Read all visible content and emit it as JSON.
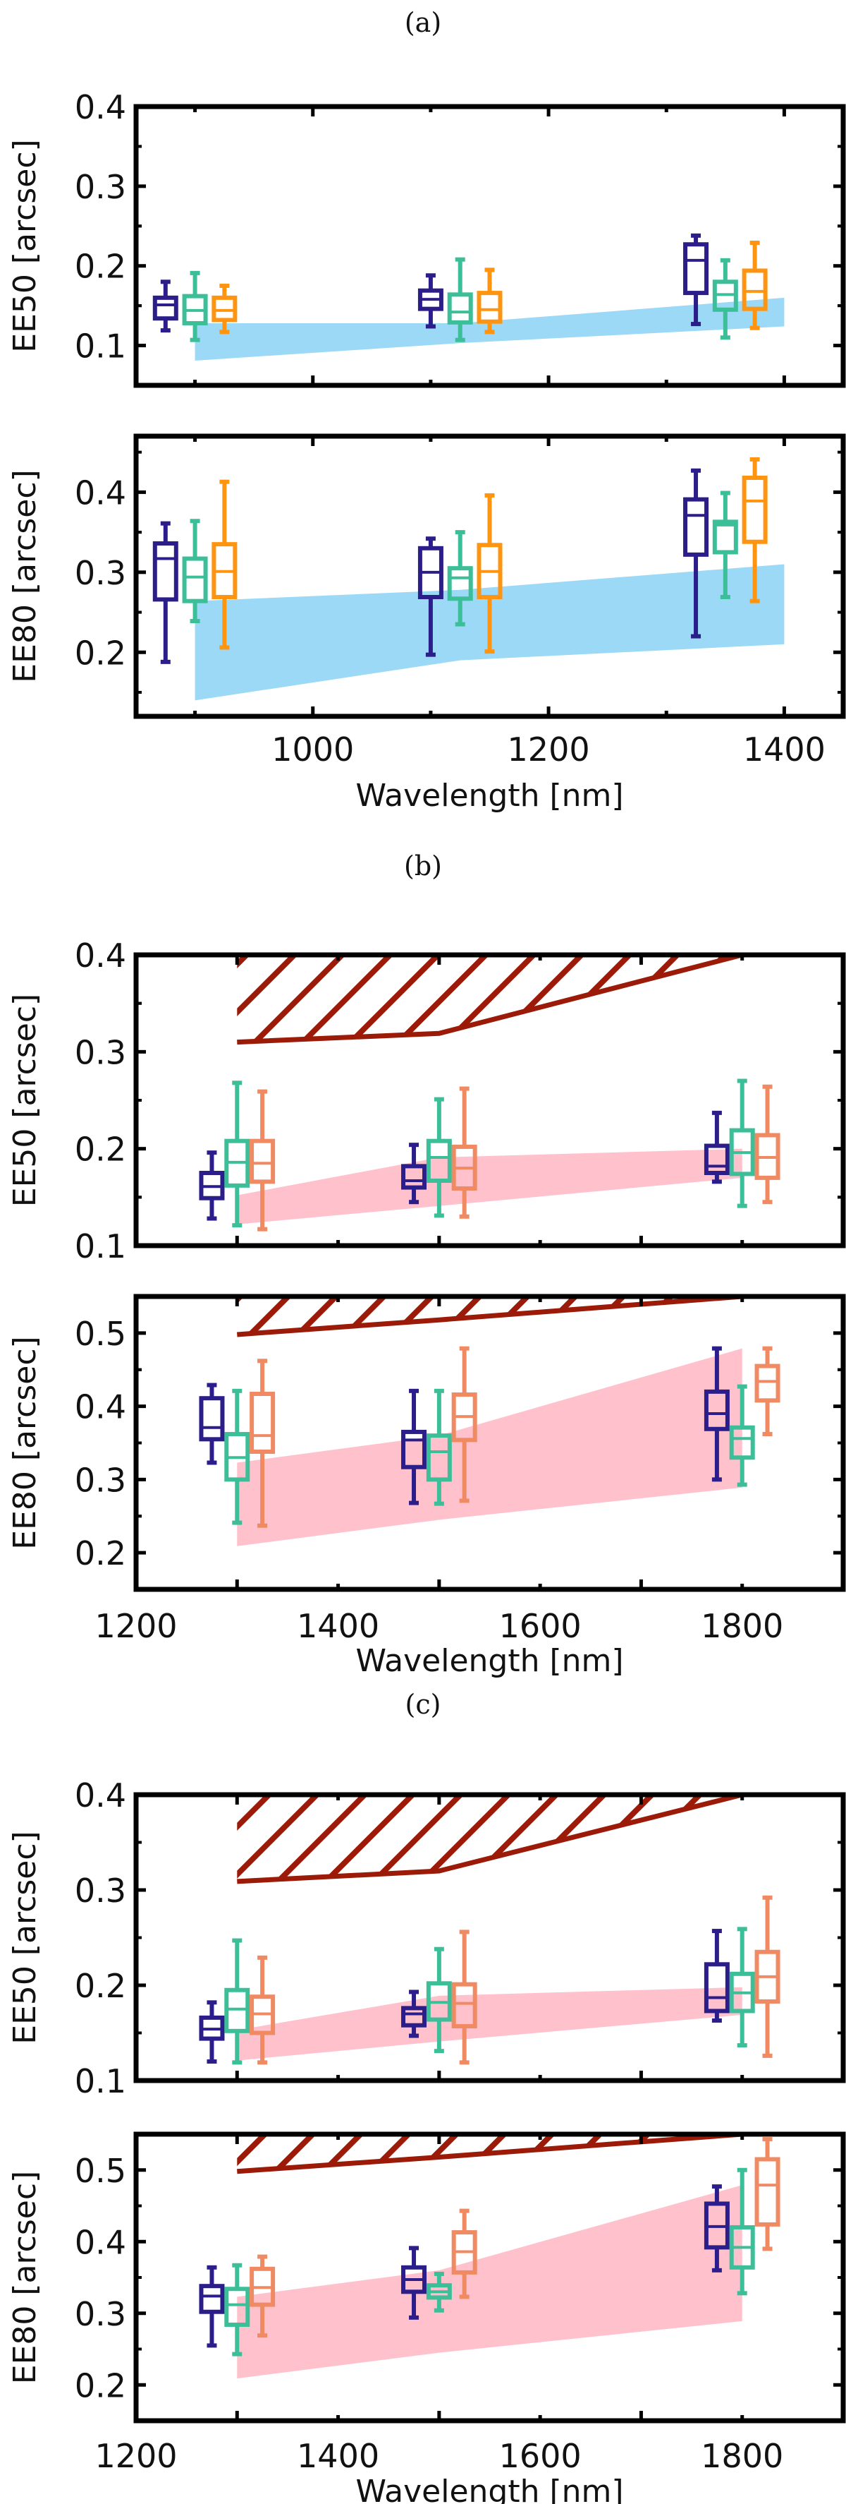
{
  "colors": {
    "purple": "#2b1d8a",
    "green": "#3cbf99",
    "orange": "#ff9410",
    "salmon": "#f08a63",
    "blue_band": "#9bd9f7",
    "pink_band": "#ffc1cc",
    "hatch": "#9b1a08",
    "axis": "#000000"
  },
  "chart_data": [
    {
      "type": "box",
      "panel": "(a)",
      "ylabel": "EE50 [arcsec]",
      "xlabel": "",
      "xlim": [
        850,
        1450
      ],
      "ylim": [
        0.05,
        0.4
      ],
      "yticks": [
        "0.1",
        "0.2",
        "0.3",
        "0.4"
      ],
      "xticks": [],
      "band": {
        "color": "#9bd9f7",
        "x": [
          900,
          1125,
          1400
        ],
        "upper": [
          0.128,
          0.128,
          0.16
        ],
        "lower": [
          0.081,
          0.103,
          0.124
        ]
      },
      "series": [
        {
          "color": "#2b1d8a",
          "boxes": [
            {
              "x": 875,
              "low": 0.119,
              "q1": 0.134,
              "median": 0.151,
              "q3": 0.16,
              "high": 0.18
            },
            {
              "x": 1100,
              "low": 0.124,
              "q1": 0.146,
              "median": 0.158,
              "q3": 0.169,
              "high": 0.188
            },
            {
              "x": 1325,
              "low": 0.127,
              "q1": 0.166,
              "median": 0.207,
              "q3": 0.227,
              "high": 0.238
            }
          ]
        },
        {
          "color": "#3cbf99",
          "boxes": [
            {
              "x": 900,
              "low": 0.107,
              "q1": 0.128,
              "median": 0.144,
              "q3": 0.162,
              "high": 0.191
            },
            {
              "x": 1125,
              "low": 0.107,
              "q1": 0.129,
              "median": 0.142,
              "q3": 0.164,
              "high": 0.208
            },
            {
              "x": 1350,
              "low": 0.11,
              "q1": 0.145,
              "median": 0.164,
              "q3": 0.18,
              "high": 0.207
            }
          ]
        },
        {
          "color": "#ff9410",
          "boxes": [
            {
              "x": 925,
              "low": 0.117,
              "q1": 0.132,
              "median": 0.144,
              "q3": 0.16,
              "high": 0.175
            },
            {
              "x": 1150,
              "low": 0.117,
              "q1": 0.13,
              "median": 0.145,
              "q3": 0.166,
              "high": 0.195
            },
            {
              "x": 1375,
              "low": 0.122,
              "q1": 0.146,
              "median": 0.168,
              "q3": 0.194,
              "high": 0.229
            }
          ]
        }
      ]
    },
    {
      "type": "box",
      "panel": "",
      "ylabel": "EE80 [arcsec]",
      "xlabel": "Wavelength [nm]",
      "xlim": [
        850,
        1450
      ],
      "ylim": [
        0.12,
        0.47
      ],
      "yticks": [
        "0.2",
        "0.3",
        "0.4"
      ],
      "xticks": [
        "1000",
        "1200",
        "1400"
      ],
      "band": {
        "color": "#9bd9f7",
        "x": [
          900,
          1125,
          1400
        ],
        "upper": [
          0.264,
          0.278,
          0.31
        ],
        "lower": [
          0.14,
          0.19,
          0.21
        ]
      },
      "series": [
        {
          "color": "#2b1d8a",
          "boxes": [
            {
              "x": 875,
              "low": 0.188,
              "q1": 0.266,
              "median": 0.317,
              "q3": 0.336,
              "high": 0.361
            },
            {
              "x": 1100,
              "low": 0.197,
              "q1": 0.269,
              "median": 0.3,
              "q3": 0.33,
              "high": 0.342
            },
            {
              "x": 1325,
              "low": 0.22,
              "q1": 0.322,
              "median": 0.371,
              "q3": 0.391,
              "high": 0.427
            }
          ]
        },
        {
          "color": "#3cbf99",
          "boxes": [
            {
              "x": 900,
              "low": 0.239,
              "q1": 0.264,
              "median": 0.294,
              "q3": 0.317,
              "high": 0.364
            },
            {
              "x": 1125,
              "low": 0.235,
              "q1": 0.267,
              "median": 0.293,
              "q3": 0.305,
              "high": 0.35
            },
            {
              "x": 1350,
              "low": 0.269,
              "q1": 0.325,
              "median": 0.359,
              "q3": 0.363,
              "high": 0.399
            }
          ]
        },
        {
          "color": "#ff9410",
          "boxes": [
            {
              "x": 925,
              "low": 0.206,
              "q1": 0.269,
              "median": 0.301,
              "q3": 0.335,
              "high": 0.413
            },
            {
              "x": 1150,
              "low": 0.201,
              "q1": 0.269,
              "median": 0.301,
              "q3": 0.334,
              "high": 0.396
            },
            {
              "x": 1375,
              "low": 0.264,
              "q1": 0.338,
              "median": 0.389,
              "q3": 0.418,
              "high": 0.441
            }
          ]
        }
      ]
    },
    {
      "type": "box",
      "panel": "(b)",
      "ylabel": "EE50 [arcsec]",
      "xlabel": "",
      "xlim": [
        1200,
        1900
      ],
      "ylim": [
        0.1,
        0.4
      ],
      "yticks": [
        "0.1",
        "0.2",
        "0.3",
        "0.4"
      ],
      "xticks": [],
      "band": {
        "color": "#ffc1cc",
        "x": [
          1300,
          1500,
          1800
        ],
        "upper": [
          0.152,
          0.191,
          0.2
        ],
        "lower": [
          0.122,
          0.141,
          0.17
        ]
      },
      "hatch": {
        "color": "#9b1a08",
        "x": [
          1300,
          1500,
          1800
        ],
        "lower": [
          0.31,
          0.319,
          0.4
        ]
      },
      "series": [
        {
          "color": "#2b1d8a",
          "boxes": [
            {
              "x": 1275,
              "low": 0.128,
              "q1": 0.149,
              "median": 0.161,
              "q3": 0.175,
              "high": 0.196
            },
            {
              "x": 1475,
              "low": 0.145,
              "q1": 0.16,
              "median": 0.167,
              "q3": 0.182,
              "high": 0.204
            },
            {
              "x": 1775,
              "low": 0.166,
              "q1": 0.175,
              "median": 0.182,
              "q3": 0.203,
              "high": 0.237
            }
          ]
        },
        {
          "color": "#3cbf99",
          "boxes": [
            {
              "x": 1300,
              "low": 0.121,
              "q1": 0.162,
              "median": 0.186,
              "q3": 0.208,
              "high": 0.268
            },
            {
              "x": 1500,
              "low": 0.131,
              "q1": 0.167,
              "median": 0.191,
              "q3": 0.208,
              "high": 0.251
            },
            {
              "x": 1800,
              "low": 0.141,
              "q1": 0.174,
              "median": 0.196,
              "q3": 0.219,
              "high": 0.27
            }
          ]
        },
        {
          "color": "#f08a63",
          "boxes": [
            {
              "x": 1325,
              "low": 0.117,
              "q1": 0.166,
              "median": 0.185,
              "q3": 0.208,
              "high": 0.259
            },
            {
              "x": 1525,
              "low": 0.13,
              "q1": 0.159,
              "median": 0.18,
              "q3": 0.202,
              "high": 0.262
            },
            {
              "x": 1825,
              "low": 0.145,
              "q1": 0.17,
              "median": 0.191,
              "q3": 0.214,
              "high": 0.264
            }
          ]
        }
      ]
    },
    {
      "type": "box",
      "panel": "",
      "ylabel": "EE80 [arcsec]",
      "xlabel": "Wavelength [nm]",
      "xlim": [
        1200,
        1900
      ],
      "ylim": [
        0.15,
        0.55
      ],
      "yticks": [
        "0.2",
        "0.3",
        "0.4",
        "0.5"
      ],
      "xticks": [
        "1200",
        "1400",
        "1600",
        "1800"
      ],
      "band": {
        "color": "#ffc1cc",
        "x": [
          1300,
          1500,
          1800
        ],
        "upper": [
          0.323,
          0.36,
          0.479
        ],
        "lower": [
          0.209,
          0.245,
          0.289
        ]
      },
      "hatch": {
        "color": "#9b1a08",
        "x": [
          1300,
          1500,
          1800
        ],
        "lower": [
          0.498,
          0.518,
          0.55
        ]
      },
      "series": [
        {
          "color": "#2b1d8a",
          "boxes": [
            {
              "x": 1275,
              "low": 0.323,
              "q1": 0.355,
              "median": 0.371,
              "q3": 0.411,
              "high": 0.429
            },
            {
              "x": 1475,
              "low": 0.268,
              "q1": 0.317,
              "median": 0.354,
              "q3": 0.365,
              "high": 0.421
            },
            {
              "x": 1775,
              "low": 0.3,
              "q1": 0.369,
              "median": 0.39,
              "q3": 0.42,
              "high": 0.479
            }
          ]
        },
        {
          "color": "#3cbf99",
          "boxes": [
            {
              "x": 1300,
              "low": 0.241,
              "q1": 0.3,
              "median": 0.33,
              "q3": 0.362,
              "high": 0.421
            },
            {
              "x": 1500,
              "low": 0.267,
              "q1": 0.3,
              "median": 0.338,
              "q3": 0.36,
              "high": 0.421
            },
            {
              "x": 1800,
              "low": 0.293,
              "q1": 0.33,
              "median": 0.356,
              "q3": 0.371,
              "high": 0.427
            }
          ]
        },
        {
          "color": "#f08a63",
          "boxes": [
            {
              "x": 1325,
              "low": 0.237,
              "q1": 0.338,
              "median": 0.36,
              "q3": 0.417,
              "high": 0.462
            },
            {
              "x": 1525,
              "low": 0.271,
              "q1": 0.354,
              "median": 0.386,
              "q3": 0.416,
              "high": 0.479
            },
            {
              "x": 1825,
              "low": 0.362,
              "q1": 0.408,
              "median": 0.434,
              "q3": 0.455,
              "high": 0.479
            }
          ]
        }
      ]
    },
    {
      "type": "box",
      "panel": "(c)",
      "ylabel": "EE50 [arcsec]",
      "xlabel": "",
      "xlim": [
        1200,
        1900
      ],
      "ylim": [
        0.1,
        0.4
      ],
      "yticks": [
        "0.1",
        "0.2",
        "0.3",
        "0.4"
      ],
      "xticks": [],
      "band": {
        "color": "#ffc1cc",
        "x": [
          1300,
          1500,
          1800
        ],
        "upper": [
          0.153,
          0.189,
          0.198
        ],
        "lower": [
          0.121,
          0.141,
          0.169
        ]
      },
      "hatch": {
        "color": "#9b1a08",
        "x": [
          1300,
          1500,
          1800
        ],
        "lower": [
          0.309,
          0.32,
          0.4
        ]
      },
      "series": [
        {
          "color": "#2b1d8a",
          "boxes": [
            {
              "x": 1275,
              "low": 0.12,
              "q1": 0.144,
              "median": 0.154,
              "q3": 0.166,
              "high": 0.182
            },
            {
              "x": 1475,
              "low": 0.147,
              "q1": 0.158,
              "median": 0.17,
              "q3": 0.176,
              "high": 0.193
            },
            {
              "x": 1775,
              "low": 0.163,
              "q1": 0.173,
              "median": 0.187,
              "q3": 0.222,
              "high": 0.257
            }
          ]
        },
        {
          "color": "#3cbf99",
          "boxes": [
            {
              "x": 1300,
              "low": 0.119,
              "q1": 0.152,
              "median": 0.175,
              "q3": 0.195,
              "high": 0.247
            },
            {
              "x": 1500,
              "low": 0.131,
              "q1": 0.164,
              "median": 0.182,
              "q3": 0.202,
              "high": 0.238
            },
            {
              "x": 1800,
              "low": 0.137,
              "q1": 0.173,
              "median": 0.192,
              "q3": 0.212,
              "high": 0.259
            }
          ]
        },
        {
          "color": "#f08a63",
          "boxes": [
            {
              "x": 1325,
              "low": 0.119,
              "q1": 0.15,
              "median": 0.17,
              "q3": 0.188,
              "high": 0.229
            },
            {
              "x": 1525,
              "low": 0.119,
              "q1": 0.157,
              "median": 0.181,
              "q3": 0.201,
              "high": 0.256
            },
            {
              "x": 1825,
              "low": 0.126,
              "q1": 0.183,
              "median": 0.209,
              "q3": 0.235,
              "high": 0.292
            }
          ]
        }
      ]
    },
    {
      "type": "box",
      "panel": "",
      "ylabel": "EE80 [arcsec]",
      "xlabel": "Wavelength [nm]",
      "xlim": [
        1200,
        1900
      ],
      "ylim": [
        0.15,
        0.55
      ],
      "yticks": [
        "0.2",
        "0.3",
        "0.4",
        "0.5"
      ],
      "xticks": [
        "1200",
        "1400",
        "1600",
        "1800"
      ],
      "band": {
        "color": "#ffc1cc",
        "x": [
          1300,
          1500,
          1800
        ],
        "upper": [
          0.323,
          0.36,
          0.479
        ],
        "lower": [
          0.209,
          0.245,
          0.289
        ]
      },
      "hatch": {
        "color": "#9b1a08",
        "x": [
          1300,
          1500,
          1800
        ],
        "lower": [
          0.498,
          0.518,
          0.55
        ]
      },
      "series": [
        {
          "color": "#2b1d8a",
          "boxes": [
            {
              "x": 1275,
              "low": 0.255,
              "q1": 0.302,
              "median": 0.324,
              "q3": 0.338,
              "high": 0.364
            },
            {
              "x": 1475,
              "low": 0.294,
              "q1": 0.33,
              "median": 0.347,
              "q3": 0.364,
              "high": 0.391
            },
            {
              "x": 1775,
              "low": 0.36,
              "q1": 0.392,
              "median": 0.421,
              "q3": 0.453,
              "high": 0.477
            }
          ]
        },
        {
          "color": "#3cbf99",
          "boxes": [
            {
              "x": 1300,
              "low": 0.243,
              "q1": 0.284,
              "median": 0.312,
              "q3": 0.334,
              "high": 0.367
            },
            {
              "x": 1500,
              "low": 0.304,
              "q1": 0.322,
              "median": 0.33,
              "q3": 0.339,
              "high": 0.355
            },
            {
              "x": 1800,
              "low": 0.328,
              "q1": 0.364,
              "median": 0.392,
              "q3": 0.42,
              "high": 0.5
            }
          ]
        },
        {
          "color": "#f08a63",
          "boxes": [
            {
              "x": 1325,
              "low": 0.269,
              "q1": 0.312,
              "median": 0.336,
              "q3": 0.362,
              "high": 0.379
            },
            {
              "x": 1525,
              "low": 0.323,
              "q1": 0.357,
              "median": 0.386,
              "q3": 0.413,
              "high": 0.443
            },
            {
              "x": 1825,
              "low": 0.39,
              "q1": 0.424,
              "median": 0.479,
              "q3": 0.515,
              "high": 0.543
            }
          ]
        }
      ]
    }
  ]
}
